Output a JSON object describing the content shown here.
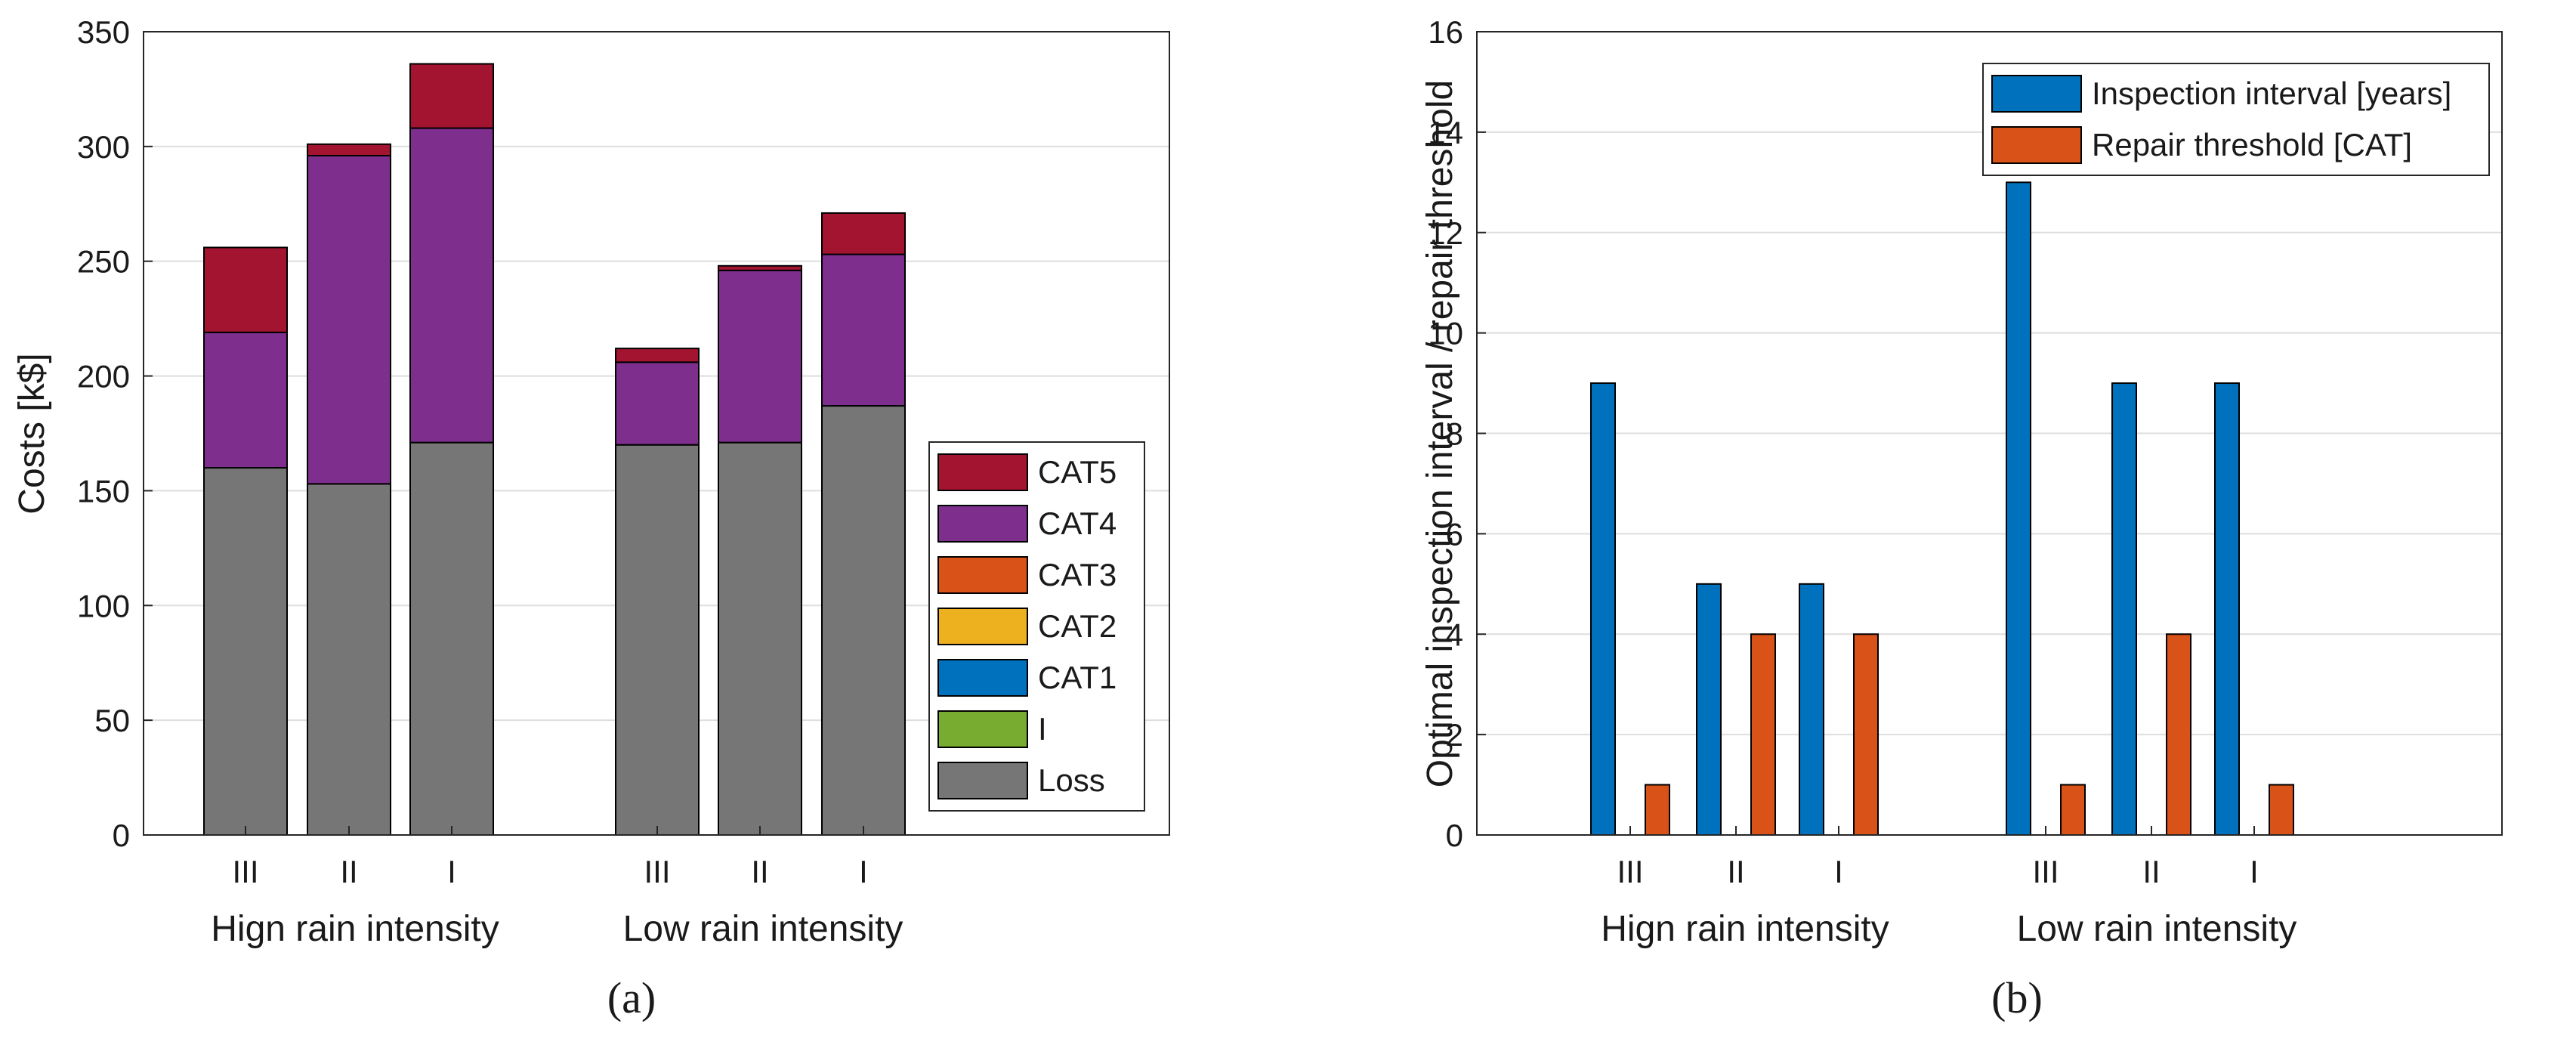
{
  "chart_data": [
    {
      "type": "bar",
      "stacked": true,
      "panel_label": "(a)",
      "ylabel": "Costs [k$]",
      "ylim": [
        0,
        350
      ],
      "yticks": [
        "0",
        "50",
        "100",
        "150",
        "200",
        "250",
        "300",
        "350"
      ],
      "grid": "horizontal",
      "categories": [
        "III",
        "II",
        "I",
        "III",
        "II",
        "I"
      ],
      "groups": [
        "Hign rain intensity",
        "Low rain intensity"
      ],
      "legend_position": "bottom-right",
      "series": [
        {
          "name": "Loss",
          "color": "#767676",
          "values": [
            160,
            153,
            171,
            170,
            171,
            187
          ]
        },
        {
          "name": "I",
          "color": "#77ac30",
          "values": [
            0,
            0,
            0,
            0,
            0,
            0
          ]
        },
        {
          "name": "CAT1",
          "color": "#0072bd",
          "values": [
            0,
            0,
            0,
            0,
            0,
            0
          ]
        },
        {
          "name": "CAT2",
          "color": "#edb120",
          "values": [
            0,
            0,
            0,
            0,
            0,
            0
          ]
        },
        {
          "name": "CAT3",
          "color": "#d95319",
          "values": [
            0,
            0,
            0,
            0,
            0,
            0
          ]
        },
        {
          "name": "CAT4",
          "color": "#7e2f8e",
          "values": [
            59,
            143,
            137,
            36,
            75,
            66
          ]
        },
        {
          "name": "CAT5",
          "color": "#a2142f",
          "values": [
            37,
            5,
            28,
            6,
            2,
            18
          ]
        }
      ]
    },
    {
      "type": "bar",
      "stacked": false,
      "panel_label": "(b)",
      "ylabel": "Optimal inspection interval / repair threshold",
      "ylim": [
        0,
        16
      ],
      "yticks": [
        "0",
        "2",
        "4",
        "6",
        "8",
        "10",
        "12",
        "14",
        "16"
      ],
      "grid": "horizontal",
      "categories": [
        "III",
        "II",
        "I",
        "III",
        "II",
        "I"
      ],
      "groups": [
        "Hign rain intensity",
        "Low rain intensity"
      ],
      "legend_position": "top-right",
      "series": [
        {
          "name": "Inspection interval [years]",
          "color": "#0072bd",
          "values": [
            9,
            5,
            5,
            13,
            9,
            9
          ]
        },
        {
          "name": "Repair threshold [CAT]",
          "color": "#d95319",
          "values": [
            1,
            4,
            4,
            1,
            4,
            1
          ]
        }
      ]
    }
  ]
}
